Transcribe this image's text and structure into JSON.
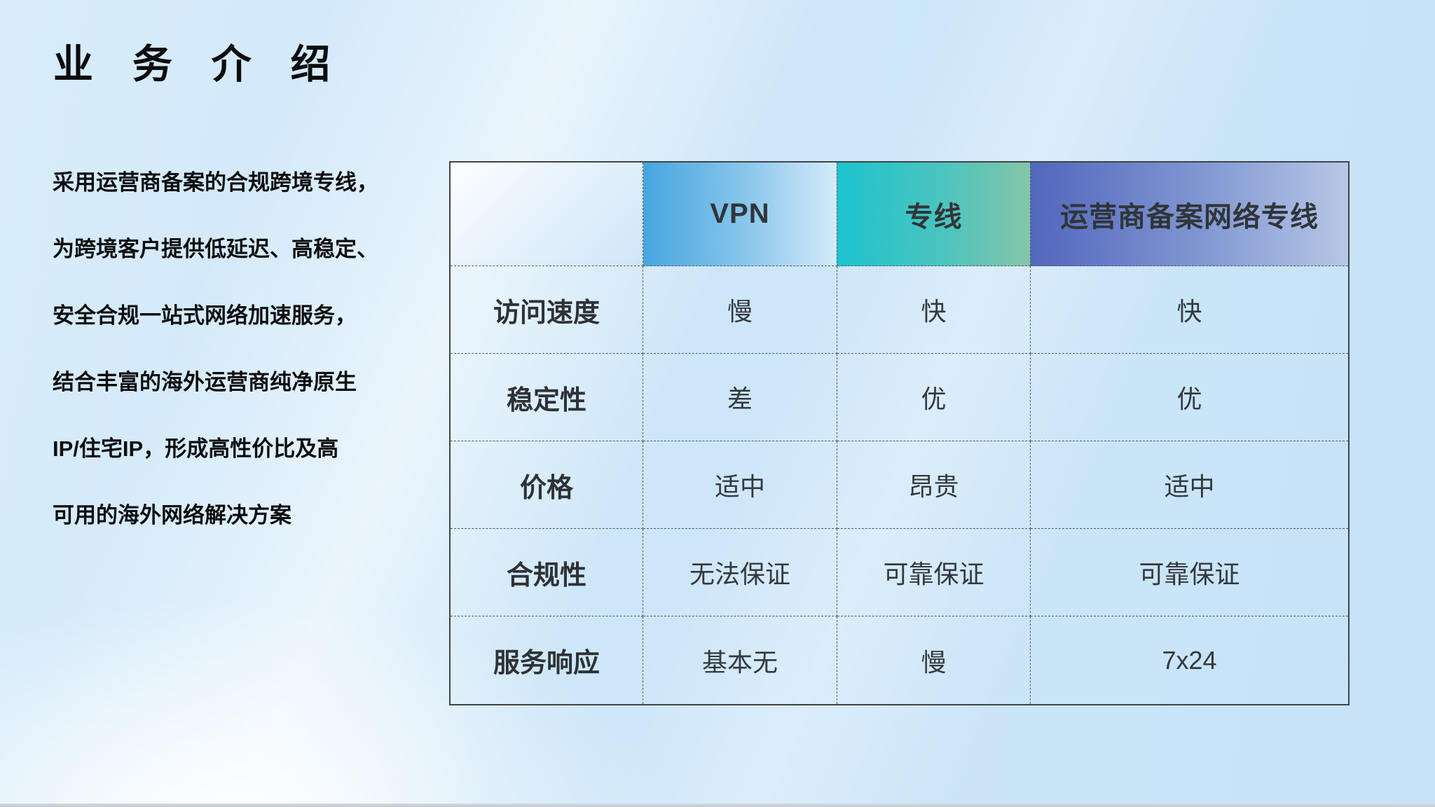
{
  "slide": {
    "title": "业 务 介 绍",
    "intro_lines": [
      "采用运营商备案的合规跨境专线，",
      "为跨境客户提供低延迟、高稳定、",
      "安全合规一站式网络加速服务，",
      "结合丰富的海外运营商纯净原生",
      "IP/住宅IP，形成高性价比及高",
      "可用的海外网络解决方案"
    ]
  },
  "table": {
    "columns": [
      "",
      "VPN",
      "专线",
      "运营商备案网络专线"
    ],
    "rows": [
      {
        "label": "访问速度",
        "values": [
          "慢",
          "快",
          "快"
        ]
      },
      {
        "label": "稳定性",
        "values": [
          "差",
          "优",
          "优"
        ]
      },
      {
        "label": "价格",
        "values": [
          "适中",
          "昂贵",
          "适中"
        ]
      },
      {
        "label": "合规性",
        "values": [
          "无法保证",
          "可靠保证",
          "可靠保证"
        ]
      },
      {
        "label": "服务响应",
        "values": [
          "基本无",
          "慢",
          "7x24"
        ]
      }
    ]
  },
  "colors": {
    "background_blue": "#cde6f9",
    "header_vpn_start": "#46a6df",
    "header_vpn_end": "#d5ebfa",
    "header_line_start": "#1cc3cd",
    "header_line_end": "#85c5a8",
    "header_carrier_start": "#5266bd",
    "header_carrier_end": "#b8c7e6",
    "table_border": "#3f4449",
    "text_dark": "#303539"
  }
}
